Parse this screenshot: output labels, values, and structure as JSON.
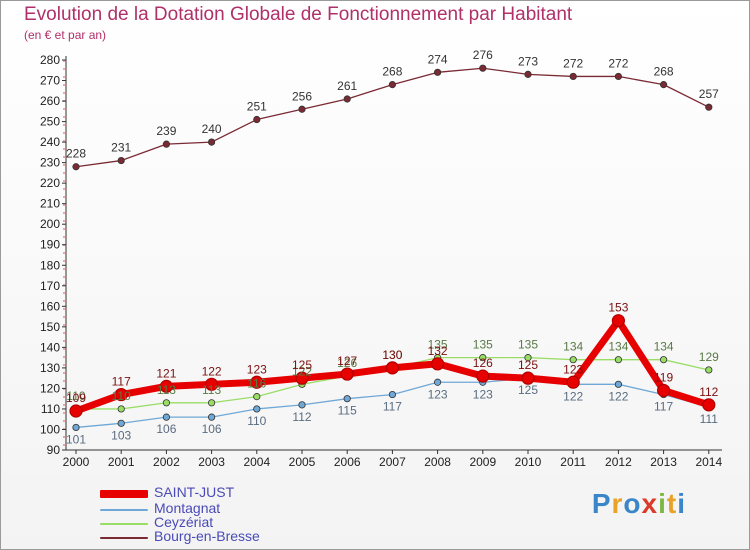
{
  "header": {
    "title": "Evolution de la Dotation Globale de Fonctionnement par Habitant",
    "subtitle": "(en € et par an)"
  },
  "logo": {
    "text": "Proxiti"
  },
  "chart_data": {
    "type": "line",
    "title": "Evolution de la Dotation Globale de Fonctionnement par Habitant",
    "subtitle": "(en € et par an)",
    "xlabel": "",
    "ylabel": "",
    "x": [
      "2000",
      "2001",
      "2002",
      "2003",
      "2004",
      "2005",
      "2006",
      "2007",
      "2008",
      "2009",
      "2010",
      "2011",
      "2012",
      "2013",
      "2014"
    ],
    "ylim": [
      90,
      280
    ],
    "yticks": [
      90,
      100,
      110,
      120,
      130,
      140,
      150,
      160,
      170,
      180,
      190,
      200,
      210,
      220,
      230,
      240,
      250,
      260,
      270,
      280
    ],
    "grid": false,
    "legend_position": "bottom-left",
    "series": [
      {
        "name": "SAINT-JUST",
        "color": "#e60000",
        "values": [
          109,
          117,
          121,
          122,
          123,
          125,
          127,
          130,
          132,
          126,
          125,
          123,
          153,
          119,
          112
        ]
      },
      {
        "name": "Montagnat",
        "color": "#6fa8d6",
        "values": [
          101,
          103,
          106,
          106,
          110,
          112,
          115,
          117,
          123,
          123,
          125,
          122,
          122,
          117,
          111
        ]
      },
      {
        "name": "Ceyzériat",
        "color": "#99dd66",
        "values": [
          110,
          110,
          113,
          113,
          116,
          122,
          126,
          130,
          135,
          135,
          135,
          134,
          134,
          134,
          129
        ]
      },
      {
        "name": "Bourg-en-Bresse",
        "color": "#7a2a33",
        "values": [
          228,
          231,
          239,
          240,
          251,
          256,
          261,
          268,
          274,
          276,
          273,
          272,
          272,
          268,
          257
        ]
      }
    ]
  }
}
